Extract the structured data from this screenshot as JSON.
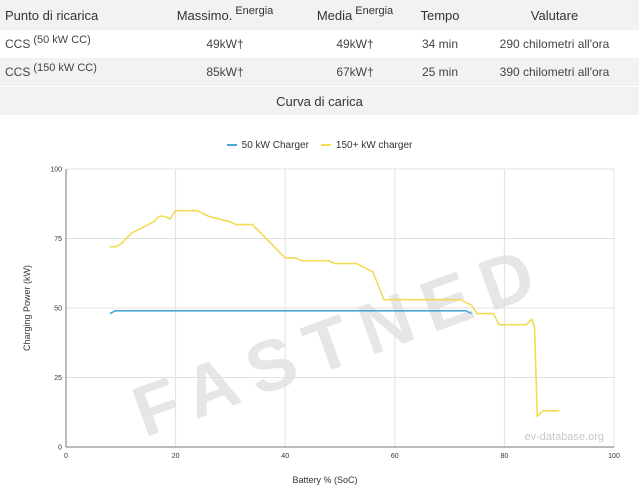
{
  "table": {
    "headers": {
      "point": "Punto di ricarica",
      "max_main": "Massimo.",
      "max_sup": "Energia",
      "avg_main": "Media",
      "avg_sup": "Energia",
      "time": "Tempo",
      "rate": "Valutare"
    },
    "rows": [
      {
        "point_main": "CCS",
        "point_sup": "(50 kW CC)",
        "max": "49kW†",
        "avg": "49kW†",
        "time": "34 min",
        "rate": "290 chilometri all'ora"
      },
      {
        "point_main": "CCS",
        "point_sup": "(150 kW CC)",
        "max": "85kW†",
        "avg": "67kW†",
        "time": "25 min",
        "rate": "390 chilometri all'ora"
      }
    ]
  },
  "caption": "Curva di carica",
  "watermark": "FASTNED",
  "credit": "ev-database.org",
  "colors": {
    "series_50": "#4aa8d6",
    "series_150": "#f0dc55",
    "grid": "#e0e0e0",
    "row_alt": "#f2f2f2"
  },
  "chart_data": {
    "type": "line",
    "title": "",
    "xlabel": "Battery % (SoC)",
    "ylabel": "Charging Power (kW)",
    "xlim": [
      0,
      100
    ],
    "ylim": [
      0,
      100
    ],
    "xticks": [
      0,
      20,
      40,
      60,
      80,
      100
    ],
    "yticks": [
      0,
      25,
      50,
      75,
      100
    ],
    "grid": true,
    "legend_position": "top-center",
    "series": [
      {
        "name": "50 kW Charger",
        "color": "#4aa8d6",
        "points": [
          [
            8,
            48
          ],
          [
            9,
            49
          ],
          [
            73,
            49
          ],
          [
            74,
            48
          ]
        ]
      },
      {
        "name": "150+ kW charger",
        "color": "#f0dc55",
        "points": [
          [
            8,
            72
          ],
          [
            9,
            72
          ],
          [
            10,
            73
          ],
          [
            12,
            77
          ],
          [
            14,
            79
          ],
          [
            16,
            81
          ],
          [
            17,
            83
          ],
          [
            18,
            83
          ],
          [
            19,
            82
          ],
          [
            20,
            85
          ],
          [
            22,
            85
          ],
          [
            24,
            85
          ],
          [
            26,
            83
          ],
          [
            28,
            82
          ],
          [
            30,
            81
          ],
          [
            31,
            80
          ],
          [
            34,
            80
          ],
          [
            36,
            76
          ],
          [
            38,
            72
          ],
          [
            40,
            68
          ],
          [
            42,
            68
          ],
          [
            43,
            67
          ],
          [
            48,
            67
          ],
          [
            49,
            66
          ],
          [
            53,
            66
          ],
          [
            54,
            65
          ],
          [
            56,
            63
          ],
          [
            57,
            58
          ],
          [
            58,
            53
          ],
          [
            60,
            53
          ],
          [
            72,
            53
          ],
          [
            74,
            51
          ],
          [
            75,
            48
          ],
          [
            78,
            48
          ],
          [
            79,
            44
          ],
          [
            84,
            44
          ],
          [
            85,
            46
          ],
          [
            85.5,
            43
          ],
          [
            86,
            11
          ],
          [
            87,
            13
          ],
          [
            90,
            13
          ]
        ]
      }
    ]
  }
}
